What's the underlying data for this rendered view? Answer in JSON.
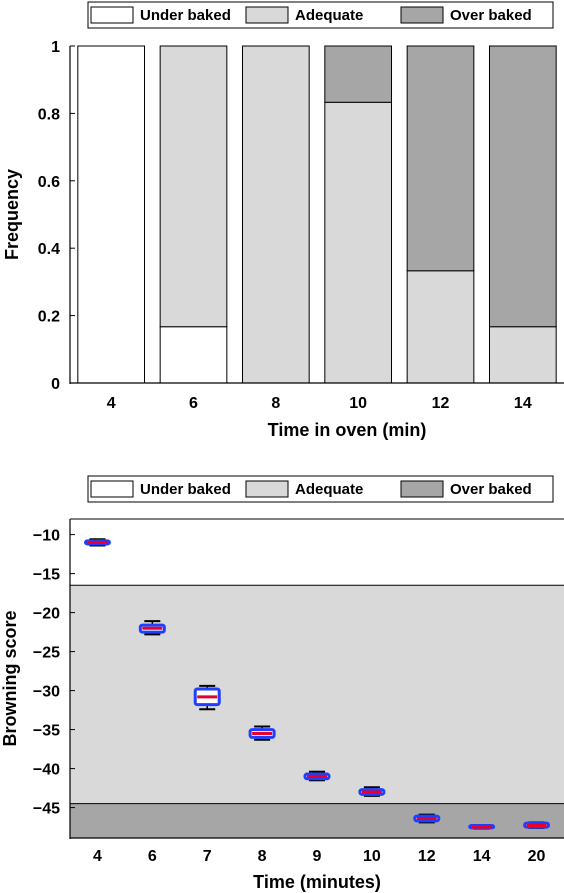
{
  "chart_data": [
    {
      "type": "bar",
      "stacked": true,
      "categories": [
        "4",
        "6",
        "8",
        "10",
        "12",
        "14"
      ],
      "series": [
        {
          "name": "Under baked",
          "values": [
            1.0,
            0.167,
            0.0,
            0.0,
            0.0,
            0.0
          ]
        },
        {
          "name": "Adequate",
          "values": [
            0.0,
            0.833,
            1.0,
            0.833,
            0.333,
            0.167
          ]
        },
        {
          "name": "Over baked",
          "values": [
            0.0,
            0.0,
            0.0,
            0.167,
            0.667,
            0.833
          ]
        }
      ],
      "xlabel": "Time in oven (min)",
      "ylabel": "Frequency",
      "ylim": [
        0,
        1
      ],
      "yticks": [
        0,
        0.2,
        0.4,
        0.6,
        0.8,
        1
      ],
      "ytick_labels": [
        "0",
        "0.2",
        "0.4",
        "0.6",
        "0.8",
        "1"
      ],
      "legend": {
        "placement": "top",
        "entries": [
          "Under baked",
          "Adequate",
          "Over baked"
        ]
      },
      "grid": false
    },
    {
      "type": "box",
      "categories": [
        "4",
        "6",
        "7",
        "8",
        "9",
        "10",
        "12",
        "14",
        "20"
      ],
      "boxes": [
        {
          "median": -11.0,
          "q1": -11.2,
          "q3": -10.8,
          "whisker_low": -11.4,
          "whisker_high": -10.6
        },
        {
          "median": -22.0,
          "q1": -22.5,
          "q3": -21.6,
          "whisker_low": -22.8,
          "whisker_high": -21.1
        },
        {
          "median": -30.8,
          "q1": -31.8,
          "q3": -29.8,
          "whisker_low": -32.4,
          "whisker_high": -29.4
        },
        {
          "median": -35.5,
          "q1": -36.0,
          "q3": -35.0,
          "whisker_low": -36.3,
          "whisker_high": -34.6
        },
        {
          "median": -41.0,
          "q1": -41.3,
          "q3": -40.7,
          "whisker_low": -41.5,
          "whisker_high": -40.4
        },
        {
          "median": -43.0,
          "q1": -43.3,
          "q3": -42.7,
          "whisker_low": -43.5,
          "whisker_high": -42.4
        },
        {
          "median": -46.4,
          "q1": -46.7,
          "q3": -46.1,
          "whisker_low": -46.9,
          "whisker_high": -45.9
        },
        {
          "median": -47.5,
          "q1": -47.6,
          "q3": -47.3,
          "whisker_low": -47.7,
          "whisker_high": -47.3
        },
        {
          "median": -47.3,
          "q1": -47.5,
          "q3": -47.0,
          "whisker_low": -47.6,
          "whisker_high": -46.9
        }
      ],
      "bands": [
        {
          "name": "Under baked",
          "from": -16.5,
          "to": -8.0
        },
        {
          "name": "Adequate",
          "from": -44.5,
          "to": -16.5
        },
        {
          "name": "Over baked",
          "from": -48.9,
          "to": -44.5
        }
      ],
      "xlabel": "Time (minutes)",
      "ylabel": "Browning score",
      "ylim": [
        -48.9,
        -8.0
      ],
      "yticks": [
        -10,
        -15,
        -20,
        -25,
        -30,
        -35,
        -40,
        -45
      ],
      "ytick_labels": [
        "−10",
        "−15",
        "−20",
        "−25",
        "−30",
        "−35",
        "−40",
        "−45"
      ],
      "legend": {
        "placement": "top",
        "entries": [
          "Under baked",
          "Adequate",
          "Over baked"
        ]
      },
      "colors": {
        "box_edge": "#1f3fff",
        "median": "#e8002a",
        "whisker": "#000000"
      },
      "grid": false
    }
  ],
  "colors": {
    "under_baked": "#ffffff",
    "adequate": "#d9d9d9",
    "over_baked": "#a6a6a6",
    "axis": "#000000"
  }
}
